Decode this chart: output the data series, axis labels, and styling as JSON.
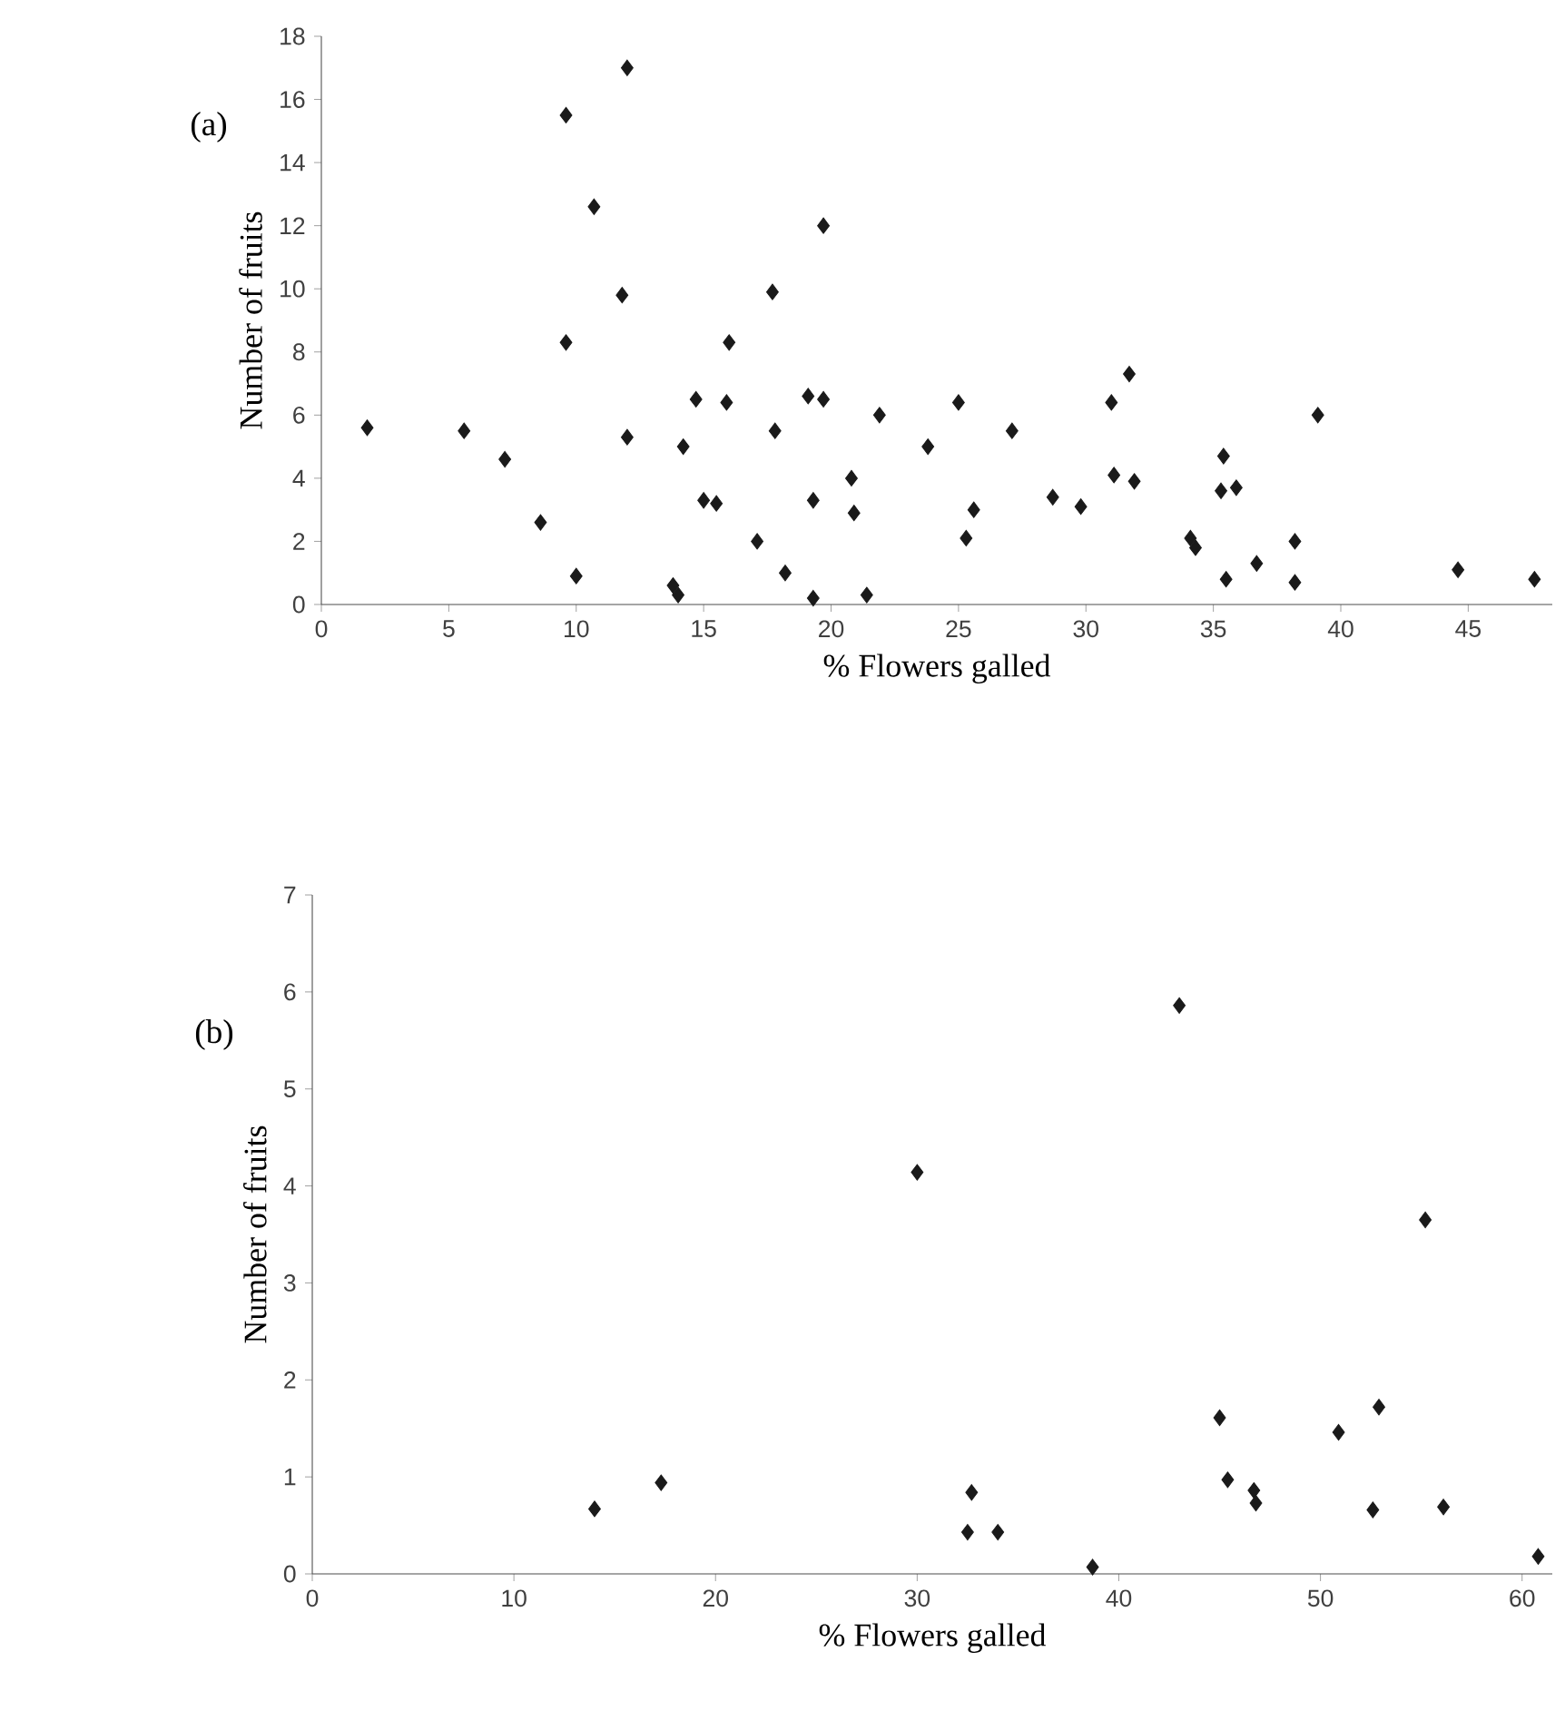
{
  "chart_data": [
    {
      "type": "scatter",
      "annotations": [
        "(a)"
      ],
      "xlabel": "% Flowers galled",
      "ylabel": "Number of fruits",
      "color": "#1a1a1a",
      "marker": "diamond",
      "grid": false,
      "xlim": [
        0,
        48.3
      ],
      "ylim": [
        0,
        18
      ],
      "xticks": [
        0,
        5,
        10,
        15,
        20,
        25,
        30,
        35,
        40,
        45
      ],
      "yticks": [
        0,
        2,
        4,
        6,
        8,
        10,
        12,
        14,
        16,
        18
      ],
      "x": [
        1.8,
        5.6,
        7.2,
        8.6,
        9.6,
        9.6,
        10.0,
        10.7,
        12.0,
        11.8,
        12.0,
        13.8,
        14.0,
        14.2,
        14.7,
        15.0,
        15.5,
        16.0,
        15.9,
        17.1,
        17.7,
        17.8,
        18.2,
        19.7,
        19.1,
        19.7,
        19.3,
        19.3,
        20.8,
        20.9,
        21.4,
        21.9,
        23.8,
        25.0,
        25.3,
        25.6,
        27.1,
        28.7,
        29.8,
        31.0,
        31.7,
        31.1,
        31.9,
        34.1,
        34.3,
        35.4,
        35.3,
        35.9,
        35.5,
        36.7,
        38.2,
        38.2,
        39.1,
        44.6,
        47.6
      ],
      "values": [
        5.6,
        5.5,
        4.6,
        2.6,
        15.5,
        8.3,
        0.9,
        12.6,
        17.0,
        9.8,
        5.3,
        0.6,
        0.3,
        5.0,
        6.5,
        3.3,
        3.2,
        8.3,
        6.4,
        2.0,
        9.9,
        5.5,
        1.0,
        12.0,
        6.6,
        6.5,
        3.3,
        0.2,
        4.0,
        2.9,
        0.3,
        6.0,
        5.0,
        6.4,
        2.1,
        3.0,
        5.5,
        3.4,
        3.1,
        6.4,
        7.3,
        4.1,
        3.9,
        2.1,
        1.8,
        4.7,
        3.6,
        3.7,
        0.8,
        1.3,
        2.0,
        0.7,
        6.0,
        1.1,
        0.8
      ]
    },
    {
      "type": "scatter",
      "annotations": [
        "(b)"
      ],
      "xlabel": "% Flowers galled",
      "ylabel": "Number of fruits",
      "color": "#1a1a1a",
      "marker": "diamond",
      "grid": false,
      "xlim": [
        0,
        61.5
      ],
      "ylim": [
        0,
        7
      ],
      "xticks": [
        0,
        10,
        20,
        30,
        40,
        50,
        60
      ],
      "yticks": [
        0,
        1,
        2,
        3,
        4,
        5,
        6,
        7
      ],
      "x": [
        14.0,
        17.3,
        30.0,
        43.0,
        55.2,
        32.7,
        32.5,
        34.0,
        38.7,
        45.0,
        45.4,
        46.7,
        46.8,
        50.9,
        52.9,
        52.6,
        56.1,
        60.8
      ],
      "values": [
        0.67,
        0.94,
        4.14,
        5.86,
        3.65,
        0.84,
        0.43,
        0.43,
        0.07,
        1.61,
        0.97,
        0.86,
        0.73,
        1.46,
        1.72,
        0.66,
        0.69,
        0.18
      ]
    }
  ]
}
